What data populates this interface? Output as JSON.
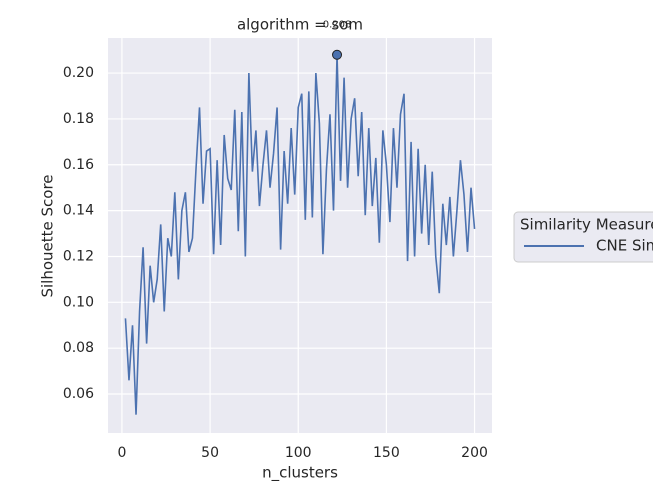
{
  "chart_data": {
    "type": "line",
    "title": "algorithm = som",
    "xlabel": "n_clusters",
    "ylabel": "Silhouette Score",
    "x": [
      2,
      4,
      6,
      8,
      10,
      12,
      14,
      16,
      18,
      20,
      22,
      24,
      26,
      28,
      30,
      32,
      34,
      36,
      38,
      40,
      42,
      44,
      46,
      48,
      50,
      52,
      54,
      56,
      58,
      60,
      62,
      64,
      66,
      68,
      70,
      72,
      74,
      76,
      78,
      80,
      82,
      84,
      86,
      88,
      90,
      92,
      94,
      96,
      98,
      100,
      102,
      104,
      106,
      108,
      110,
      112,
      114,
      116,
      118,
      120,
      122,
      124,
      126,
      128,
      130,
      132,
      134,
      136,
      138,
      140,
      142,
      144,
      146,
      148,
      150,
      152,
      154,
      156,
      158,
      160,
      162,
      164,
      166,
      168,
      170,
      172,
      174,
      176,
      178,
      180,
      182,
      184,
      186,
      188,
      190,
      192,
      194,
      196,
      198,
      200
    ],
    "series": [
      {
        "name": "CNE Sim",
        "color": "#4c72b0",
        "values": [
          0.093,
          0.066,
          0.09,
          0.051,
          0.096,
          0.124,
          0.082,
          0.116,
          0.1,
          0.11,
          0.134,
          0.096,
          0.128,
          0.12,
          0.148,
          0.11,
          0.14,
          0.148,
          0.122,
          0.128,
          0.158,
          0.185,
          0.143,
          0.166,
          0.167,
          0.121,
          0.162,
          0.125,
          0.173,
          0.154,
          0.149,
          0.184,
          0.131,
          0.183,
          0.12,
          0.2,
          0.157,
          0.175,
          0.142,
          0.16,
          0.175,
          0.15,
          0.165,
          0.185,
          0.123,
          0.166,
          0.143,
          0.176,
          0.147,
          0.185,
          0.191,
          0.136,
          0.192,
          0.137,
          0.2,
          0.178,
          0.121,
          0.158,
          0.182,
          0.14,
          0.208,
          0.153,
          0.198,
          0.15,
          0.18,
          0.189,
          0.155,
          0.183,
          0.138,
          0.176,
          0.142,
          0.163,
          0.126,
          0.175,
          0.16,
          0.135,
          0.176,
          0.15,
          0.182,
          0.191,
          0.118,
          0.17,
          0.12,
          0.167,
          0.13,
          0.16,
          0.125,
          0.157,
          0.12,
          0.104,
          0.143,
          0.125,
          0.146,
          0.12,
          0.14,
          0.162,
          0.147,
          0.122,
          0.15,
          0.132
        ]
      }
    ],
    "annotation": {
      "x": 122,
      "y": 0.208,
      "label": "0.208"
    },
    "xlim": [
      -7.9,
      209.9
    ],
    "ylim": [
      0.043,
      0.2153
    ],
    "xticks": [
      0,
      50,
      100,
      150,
      200
    ],
    "yticks": [
      {
        "value": 0.06,
        "label": "0.06"
      },
      {
        "value": 0.08,
        "label": "0.08"
      },
      {
        "value": 0.1,
        "label": "0.10"
      },
      {
        "value": 0.12,
        "label": "0.12"
      },
      {
        "value": 0.14,
        "label": "0.14"
      },
      {
        "value": 0.16,
        "label": "0.16"
      },
      {
        "value": 0.18,
        "label": "0.18"
      },
      {
        "value": 0.2,
        "label": "0.20"
      }
    ],
    "grid": true,
    "legend_title": "Similarity Measure",
    "legend_position": "right"
  }
}
